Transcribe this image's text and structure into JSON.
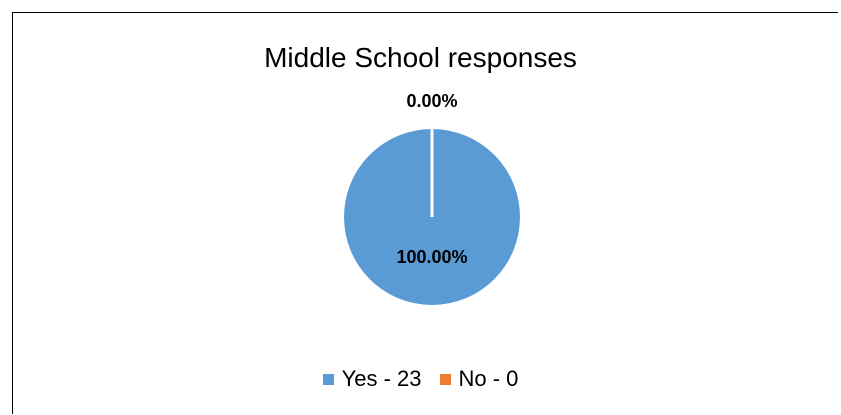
{
  "chart_data": {
    "type": "pie",
    "title": "Middle School responses",
    "slices": [
      {
        "label": "Yes - 23",
        "value": 23,
        "percent_label": "100.00%",
        "color": "#5b9bd5"
      },
      {
        "label": "No - 0",
        "value": 0,
        "percent_label": "0.00%",
        "color": "#ed7d31"
      }
    ],
    "legend_position": "bottom"
  }
}
